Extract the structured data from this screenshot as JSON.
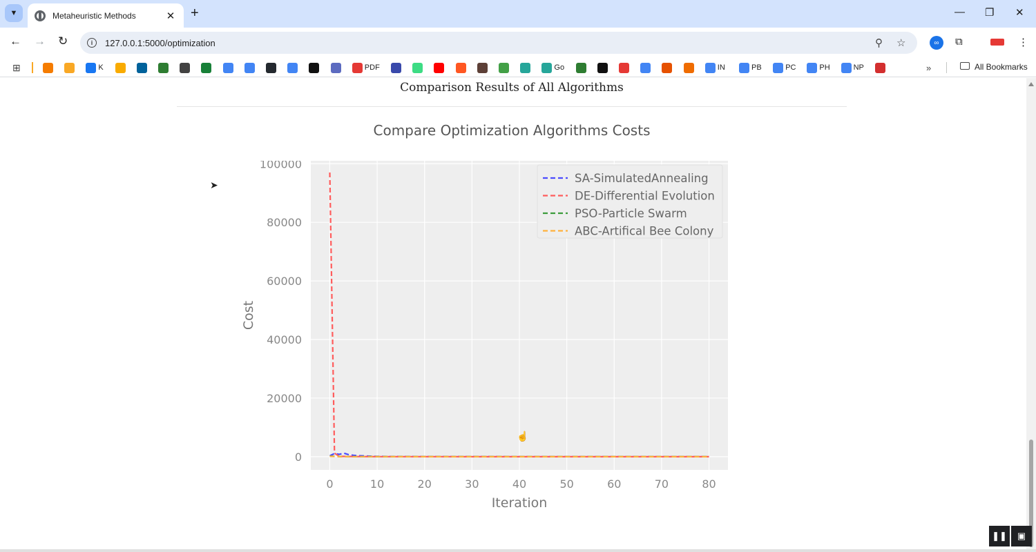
{
  "browser": {
    "tab_title": "Metaheuristic Methods",
    "url": "127.0.0.1:5000/optimization",
    "bookmarks": [
      {
        "label": "",
        "icon": "arrow-icon",
        "color": "#f57c00"
      },
      {
        "label": "",
        "icon": "sheet-icon",
        "color": "#f9a825"
      },
      {
        "label": "K",
        "icon": "facebook-icon",
        "color": "#1877f2"
      },
      {
        "label": "",
        "icon": "analytics-icon",
        "color": "#f9ab00"
      },
      {
        "label": "",
        "icon": "ieee-icon",
        "color": "#00629b"
      },
      {
        "label": "",
        "icon": "circle-icon",
        "color": "#2e7d32"
      },
      {
        "label": "",
        "icon": "globe-icon",
        "color": "#424242"
      },
      {
        "label": "",
        "icon": "plus-icon",
        "color": "#188038"
      },
      {
        "label": "",
        "icon": "google-icon",
        "color": "#4285f4"
      },
      {
        "label": "",
        "icon": "google-icon",
        "color": "#4285f4"
      },
      {
        "label": "",
        "icon": "github-icon",
        "color": "#24292f"
      },
      {
        "label": "",
        "icon": "google-icon",
        "color": "#4285f4"
      },
      {
        "label": "",
        "icon": "openai-icon",
        "color": "#111111"
      },
      {
        "label": "",
        "icon": "bird-icon",
        "color": "#5c6bc0"
      },
      {
        "label": "PDF",
        "icon": "pdf-icon",
        "color": "#e53935"
      },
      {
        "label": "",
        "icon": "bracket-icon",
        "color": "#3949ab"
      },
      {
        "label": "",
        "icon": "android-icon",
        "color": "#3ddc84"
      },
      {
        "label": "",
        "icon": "youtube-icon",
        "color": "#ff0000"
      },
      {
        "label": "",
        "icon": "z-icon",
        "color": "#ff5722"
      },
      {
        "label": "",
        "icon": "pill-icon",
        "color": "#5d4037"
      },
      {
        "label": "",
        "icon": "ring-icon",
        "color": "#43a047"
      },
      {
        "label": "",
        "icon": "heart-icon",
        "color": "#26a69a"
      },
      {
        "label": "Go",
        "icon": "heart-icon",
        "color": "#26a69a"
      },
      {
        "label": "",
        "icon": "leaf-icon",
        "color": "#2e7d32"
      },
      {
        "label": "",
        "icon": "cl-icon",
        "color": "#111111"
      },
      {
        "label": "",
        "icon": "ya-icon",
        "color": "#e53935"
      },
      {
        "label": "",
        "icon": "google-icon",
        "color": "#4285f4"
      },
      {
        "label": "",
        "icon": "matlab-icon",
        "color": "#e65100"
      },
      {
        "label": "",
        "icon": "eye-icon",
        "color": "#ef6c00"
      },
      {
        "label": "IN",
        "icon": "google-icon",
        "color": "#4285f4"
      },
      {
        "label": "PB",
        "icon": "google-icon",
        "color": "#4285f4"
      },
      {
        "label": "PC",
        "icon": "google-icon",
        "color": "#4285f4"
      },
      {
        "label": "PH",
        "icon": "google-icon",
        "color": "#4285f4"
      },
      {
        "label": "NP",
        "icon": "google-icon",
        "color": "#4285f4"
      },
      {
        "label": "",
        "icon": "office-icon",
        "color": "#d32f2f"
      }
    ],
    "all_bookmarks": "All Bookmarks"
  },
  "page": {
    "section_title": "Comparison Results of All Algorithms",
    "chart_title": "Compare Optimization Algorithms Costs"
  },
  "chart_data": {
    "type": "line",
    "title": "Compare Optimization Algorithms Costs",
    "xlabel": "Iteration",
    "ylabel": "Cost",
    "xlim": [
      -4,
      84
    ],
    "ylim": [
      -4500,
      101000
    ],
    "xticks": [
      0,
      10,
      20,
      30,
      40,
      50,
      60,
      70,
      80
    ],
    "yticks": [
      0,
      20000,
      40000,
      60000,
      80000,
      100000
    ],
    "grid": true,
    "legend_position": "top-right",
    "series": [
      {
        "name": "SA-SimulatedAnnealing",
        "color": "#4a4aff",
        "x": [
          0,
          1,
          2,
          3,
          4,
          5,
          6,
          8,
          10,
          20,
          40,
          60,
          80
        ],
        "y": [
          300,
          1100,
          800,
          1200,
          700,
          500,
          350,
          200,
          100,
          40,
          20,
          10,
          5
        ]
      },
      {
        "name": "DE-Differential Evolution",
        "color": "#ff5c5c",
        "x": [
          0,
          1,
          2,
          5,
          10,
          20,
          40,
          60,
          80
        ],
        "y": [
          97000,
          1200,
          150,
          60,
          30,
          15,
          8,
          5,
          3
        ]
      },
      {
        "name": "PSO-Particle Swarm",
        "color": "#3b9b3b",
        "x": [
          0,
          1,
          2,
          5,
          10,
          20,
          40,
          60,
          80
        ],
        "y": [
          200,
          120,
          60,
          30,
          15,
          8,
          5,
          3,
          2
        ]
      },
      {
        "name": "ABC-Artifical Bee Colony",
        "color": "#ffb13b",
        "x": [
          0,
          1,
          2,
          5,
          10,
          20,
          40,
          60,
          80
        ],
        "y": [
          150,
          90,
          50,
          25,
          12,
          6,
          4,
          2,
          1
        ]
      }
    ]
  }
}
